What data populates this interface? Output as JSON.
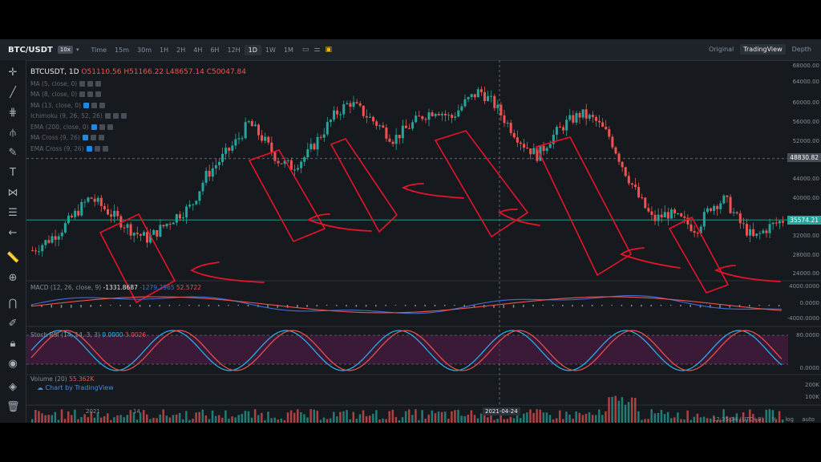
{
  "topbar": {
    "pair": "BTC/USDT",
    "leverage": "10x",
    "timeframes": [
      "Time",
      "15m",
      "30m",
      "1H",
      "2H",
      "4H",
      "6H",
      "12H",
      "1D",
      "1W",
      "1M"
    ],
    "active_timeframe": "1D",
    "views": [
      "Original",
      "TradingView",
      "Depth"
    ],
    "active_view": "TradingView"
  },
  "legend": {
    "symbol": "BTCUSDT, 1D",
    "open": "O51110.56",
    "high": "H51166.22",
    "low": "L48657.14",
    "close": "C50047.84"
  },
  "indicators": [
    "MA (5, close, 0)",
    "MA (8, close, 0)",
    "MA (13, close, 0)",
    "Ichimoku (9, 26, 52, 26)",
    "EMA (200, close, 0)",
    "MA Cross (9, 26)",
    "EMA Cross (9, 26)"
  ],
  "price_axis": [
    "68000.00",
    "64000.00",
    "60000.00",
    "56000.00",
    "52000.00",
    "48830.82",
    "44000.00",
    "40000.00",
    "35574.21",
    "32000.00",
    "28000.00",
    "24000.00"
  ],
  "crosshair_price": "48830.82",
  "last_price": "35574.21",
  "macd": {
    "label": "MACD (12, 26, close, 9)",
    "v1": "-1331.8687",
    "v2": "-1279.2965",
    "v3": "52.5722",
    "axis": [
      "4000.0000",
      "0.0000",
      "-4000.0000"
    ]
  },
  "stoch": {
    "label": "Stoch RSI (14, 14, 3, 3)",
    "v1": "0.0000",
    "v2": "3.0026",
    "axis": [
      "80.0000",
      "0.0000"
    ]
  },
  "volume": {
    "label": "Volume (20)",
    "v1": "55.362K",
    "axis": [
      "200K",
      "100K"
    ],
    "watermark": "Chart by TradingView"
  },
  "x_axis": [
    "2021",
    "14"
  ],
  "crosshair_date": "2021-04-24",
  "bottom_bar": {
    "time": "12:35:34 (UTC+8)",
    "percent": "%",
    "log": "log",
    "auto": "auto"
  },
  "chart_data": {
    "type": "candlestick",
    "series": [
      {
        "name": "BTCUSDT, 1D",
        "close_path": [
          29000,
          31000,
          33500,
          37000,
          40500,
          38000,
          35500,
          33000,
          31500,
          34000,
          36500,
          38500,
          45000,
          48500,
          52000,
          56500,
          53000,
          48500,
          47000,
          49500,
          54000,
          58500,
          61000,
          58500,
          56000,
          53000,
          55500,
          58000,
          59500,
          57500,
          61000,
          63500,
          60500,
          56000,
          52000,
          49500,
          53500,
          56500,
          58500,
          57000,
          53500,
          46500,
          40500,
          35500,
          37000,
          35500,
          33500,
          38500,
          40000,
          35000,
          31500,
          34000,
          35500
        ]
      }
    ]
  },
  "colors": {
    "up": "#26a69a",
    "down": "#ef5350",
    "annotation": "#e8132a",
    "macd": "#3f6fd8",
    "signal": "#ef5350",
    "k": "#29b6f6",
    "d": "#ef5350",
    "stoch_band": "#5b1b4f"
  }
}
